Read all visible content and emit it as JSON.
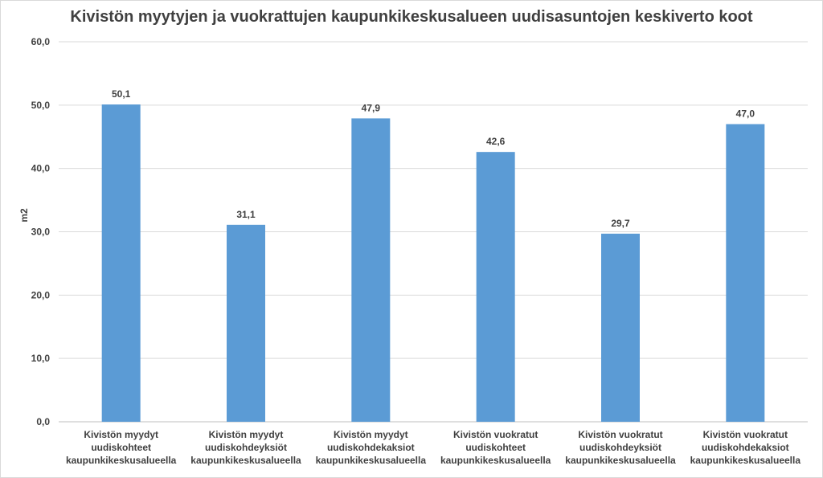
{
  "chart_data": {
    "type": "bar",
    "title": "Kivistön myytyjen ja vuokrattujen kaupunkikeskusalueen uudisasuntojen keskiverto koot",
    "xlabel": "",
    "ylabel": "m2",
    "ylim": [
      0,
      60
    ],
    "yticks": [
      "0,0",
      "10,0",
      "20,0",
      "30,0",
      "40,0",
      "50,0",
      "60,0"
    ],
    "grid": true,
    "bar_color": "#5b9bd5",
    "categories": [
      [
        "Kivistön myydyt",
        "uudiskohteet",
        "kaupunkikeskusalueella"
      ],
      [
        "Kivistön myydyt",
        "uudiskohdeyksiöt",
        "kaupunkikeskusalueella"
      ],
      [
        "Kivistön myydyt",
        "uudiskohdekaksiot",
        "kaupunkikeskusalueella"
      ],
      [
        "Kivistön vuokratut",
        "uudiskohteet",
        "kaupunkikeskusalueella"
      ],
      [
        "Kivistön vuokratut",
        "uudiskohdeyksiöt",
        "kaupunkikeskusalueella"
      ],
      [
        "Kivistön vuokratut",
        "uudiskohdekaksiot",
        "kaupunkikeskusalueella"
      ]
    ],
    "values": [
      50.1,
      31.1,
      47.9,
      42.6,
      29.7,
      47.0
    ],
    "value_labels": [
      "50,1",
      "31,1",
      "47,9",
      "42,6",
      "29,7",
      "47,0"
    ]
  }
}
